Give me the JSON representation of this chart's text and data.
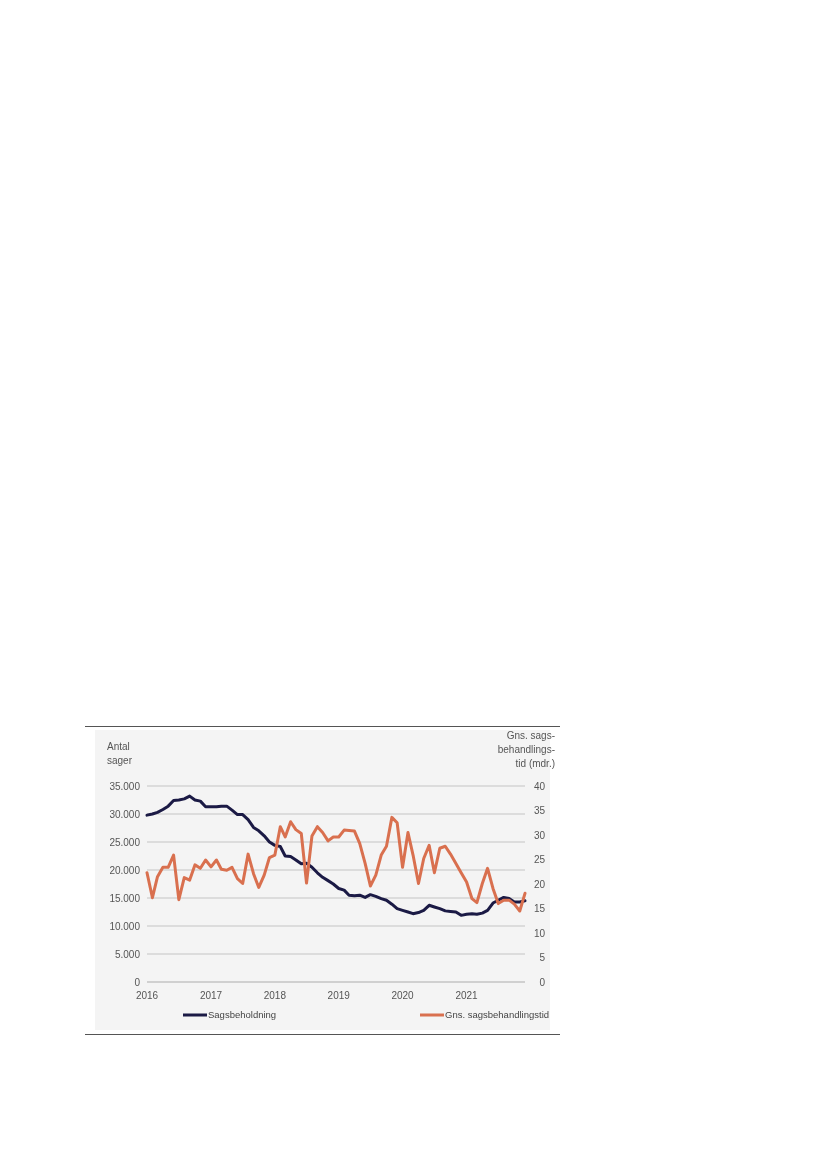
{
  "chart_data": {
    "type": "line",
    "ylabel": "Antal sager",
    "y2label": "Gns. sags-behandlings-tid (mdr.)",
    "x": [
      "2016-01",
      "2016-02",
      "2016-03",
      "2016-04",
      "2016-05",
      "2016-06",
      "2016-07",
      "2016-08",
      "2016-09",
      "2016-10",
      "2016-11",
      "2016-12",
      "2017-01",
      "2017-02",
      "2017-03",
      "2017-04",
      "2017-05",
      "2017-06",
      "2017-07",
      "2017-08",
      "2017-09",
      "2017-10",
      "2017-11",
      "2017-12",
      "2018-01",
      "2018-02",
      "2018-03",
      "2018-04",
      "2018-05",
      "2018-06",
      "2018-07",
      "2018-08",
      "2018-09",
      "2018-10",
      "2018-11",
      "2018-12",
      "2019-01",
      "2019-02",
      "2019-03",
      "2019-04",
      "2019-05",
      "2019-06",
      "2019-07",
      "2019-08",
      "2019-09",
      "2019-10",
      "2019-11",
      "2019-12",
      "2020-01",
      "2020-02",
      "2020-03",
      "2020-04",
      "2020-05",
      "2020-06",
      "2020-07",
      "2020-08",
      "2020-09",
      "2020-10",
      "2020-11",
      "2020-12",
      "2021-01",
      "2021-02",
      "2021-03",
      "2021-04",
      "2021-05",
      "2021-06",
      "2021-07",
      "2021-08",
      "2021-09",
      "2021-10",
      "2021-11",
      "2021-12"
    ],
    "series": [
      {
        "name": "Sagsbeholdning",
        "color": "#1b1a45",
        "values": [
          29800,
          30000,
          30300,
          30800,
          31400,
          32400,
          32500,
          32700,
          33200,
          32500,
          32300,
          31300,
          31300,
          31300,
          31400,
          31400,
          30700,
          29900,
          29900,
          29000,
          27600,
          27000,
          26100,
          25000,
          24400,
          24200,
          22500,
          22400,
          21800,
          21100,
          21200,
          20500,
          19500,
          18700,
          18100,
          17500,
          16700,
          16400,
          15500,
          15400,
          15500,
          15100,
          15600,
          15300,
          14900,
          14600,
          13900,
          13100,
          12800,
          12500,
          12200,
          12400,
          12800,
          13700,
          13400,
          13100,
          12700,
          12600,
          12500,
          11900,
          12100,
          12200,
          12100,
          12300,
          12800,
          14100,
          14600,
          15100,
          14900,
          14300,
          14300,
          14500
        ]
      },
      {
        "name": "Gns. sagsbehandlingstid",
        "color": "#d9704f",
        "axis": "y2",
        "values": [
          22.3,
          17.2,
          21.5,
          23.4,
          23.4,
          25.9,
          16.8,
          21.3,
          20.8,
          23.9,
          23.2,
          24.9,
          23.5,
          24.9,
          23.0,
          22.8,
          23.4,
          21.1,
          20.1,
          26.1,
          22.1,
          19.3,
          21.8,
          25.4,
          25.9,
          31.7,
          29.6,
          32.7,
          31.1,
          30.3,
          20.2,
          29.8,
          31.7,
          30.5,
          28.8,
          29.6,
          29.6,
          31.0,
          30.9,
          30.8,
          28.3,
          24.2,
          19.6,
          21.8,
          25.9,
          27.7,
          33.6,
          32.5,
          23.4,
          30.5,
          25.9,
          20.1,
          25.2,
          27.9,
          22.3,
          27.3,
          27.7,
          26.1,
          24.2,
          22.3,
          20.4,
          17.0,
          16.2,
          20.1,
          23.2,
          19.1,
          16.0,
          16.7,
          16.7,
          15.9,
          14.5,
          18.1
        ]
      }
    ],
    "xlim": [
      "2016-01",
      "2021-12"
    ],
    "xticks": [
      "2016",
      "2017",
      "2018",
      "2019",
      "2020",
      "2021"
    ],
    "ylim": [
      0,
      35000
    ],
    "yticks": [
      0,
      {
        "value": 5000,
        "label": "5.000"
      },
      {
        "value": 10000,
        "label": "10.000"
      },
      {
        "value": 15000,
        "label": "15.000"
      },
      {
        "value": 20000,
        "label": "20.000"
      },
      {
        "value": 25000,
        "label": "25.000"
      },
      {
        "value": 30000,
        "label": "30.000"
      },
      {
        "value": 35000,
        "label": "35.000"
      }
    ],
    "y2lim": [
      0,
      40
    ],
    "y2ticks": [
      0,
      5,
      10,
      15,
      20,
      25,
      30,
      35,
      40
    ],
    "grid": "y",
    "legend": "bottom",
    "line_style": "solid",
    "marker": "none"
  }
}
